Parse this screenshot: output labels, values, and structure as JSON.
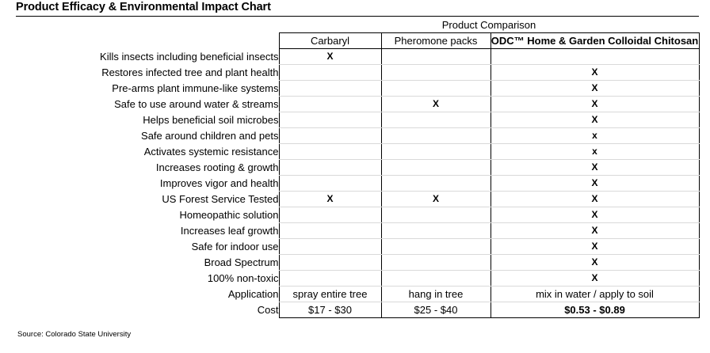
{
  "title": "Product Efficacy & Environmental Impact Chart",
  "group_header": "Product Comparison",
  "columns": [
    "Carbaryl",
    "Pheromone packs",
    "ODC™ Home & Garden Colloidal Chitosan"
  ],
  "rows": [
    {
      "label": "Kills insects including beneficial insects",
      "cells": [
        "X",
        "",
        ""
      ]
    },
    {
      "label": "Restores infected tree and plant health",
      "cells": [
        "",
        "",
        "X"
      ]
    },
    {
      "label": "Pre-arms plant immune-like systems",
      "cells": [
        "",
        "",
        "X"
      ]
    },
    {
      "label": "Safe to use around water & streams",
      "cells": [
        "",
        "X",
        "X"
      ]
    },
    {
      "label": "Helps beneficial soil microbes",
      "cells": [
        "",
        "",
        "X"
      ]
    },
    {
      "label": "Safe around children and pets",
      "cells": [
        "",
        "",
        "x"
      ]
    },
    {
      "label": "Activates systemic resistance",
      "cells": [
        "",
        "",
        "x"
      ]
    },
    {
      "label": "Increases rooting & growth",
      "cells": [
        "",
        "",
        "X"
      ]
    },
    {
      "label": "Improves vigor and health",
      "cells": [
        "",
        "",
        "X"
      ]
    },
    {
      "label": "US Forest Service Tested",
      "cells": [
        "X",
        "X",
        "X"
      ]
    },
    {
      "label": "Homeopathic solution",
      "cells": [
        "",
        "",
        "X"
      ]
    },
    {
      "label": "Increases leaf growth",
      "cells": [
        "",
        "",
        "X"
      ]
    },
    {
      "label": "Safe for indoor use",
      "cells": [
        "",
        "",
        "X"
      ]
    },
    {
      "label": "Broad Spectrum",
      "cells": [
        "",
        "",
        "X"
      ]
    },
    {
      "label": "100% non-toxic",
      "cells": [
        "",
        "",
        "X"
      ]
    }
  ],
  "application": {
    "label": "Application",
    "cells": [
      "spray entire tree",
      "hang in tree",
      "mix in water / apply to soil"
    ]
  },
  "cost": {
    "label": "Cost",
    "cells": [
      "$17 -  $30",
      "$25 - $40",
      "$0.53 -  $0.89"
    ]
  },
  "source": "Source: Colorado State University"
}
